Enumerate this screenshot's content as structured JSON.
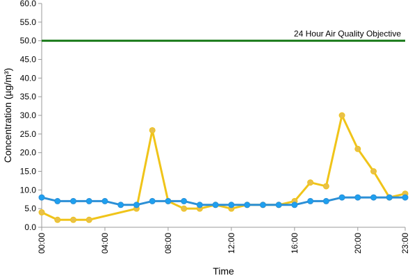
{
  "chart_data": {
    "type": "line",
    "title": "",
    "xlabel": "Time",
    "ylabel": "Concentration (µg/m³)",
    "ylim": [
      0,
      60
    ],
    "yticks": [
      "0.0",
      "5.0",
      "10.0",
      "15.0",
      "20.0",
      "25.0",
      "30.0",
      "35.0",
      "40.0",
      "45.0",
      "50.0",
      "55.0",
      "60.0"
    ],
    "xlim": [
      0,
      23
    ],
    "xticks": [
      {
        "hour": 0,
        "label": "00:00"
      },
      {
        "hour": 4,
        "label": "04:00"
      },
      {
        "hour": 8,
        "label": "08:00"
      },
      {
        "hour": 12,
        "label": "12:00"
      },
      {
        "hour": 16,
        "label": "16:00"
      },
      {
        "hour": 20,
        "label": "20:00"
      },
      {
        "hour": 23,
        "label": "23:00"
      }
    ],
    "grid": false,
    "legend": "none",
    "series": [
      {
        "color": "#f0c419",
        "marker_fill": "#e8c04a",
        "points": [
          {
            "x": 0,
            "y": 4
          },
          {
            "x": 1,
            "y": 2
          },
          {
            "x": 2,
            "y": 2
          },
          {
            "x": 3,
            "y": 2
          },
          {
            "x": 6,
            "y": 5
          },
          {
            "x": 7,
            "y": 26
          },
          {
            "x": 8,
            "y": 7
          },
          {
            "x": 9,
            "y": 5
          },
          {
            "x": 10,
            "y": 5
          },
          {
            "x": 11,
            "y": 6
          },
          {
            "x": 12,
            "y": 5
          },
          {
            "x": 13,
            "y": 6
          },
          {
            "x": 14,
            "y": 6
          },
          {
            "x": 15,
            "y": 6
          },
          {
            "x": 16,
            "y": 7
          },
          {
            "x": 17,
            "y": 12
          },
          {
            "x": 18,
            "y": 11
          },
          {
            "x": 19,
            "y": 30
          },
          {
            "x": 20,
            "y": 21
          },
          {
            "x": 21,
            "y": 15
          },
          {
            "x": 22,
            "y": 8
          },
          {
            "x": 23,
            "y": 9
          }
        ]
      },
      {
        "color": "#2b8fd6",
        "marker_fill": "#1ea0f0",
        "points": [
          {
            "x": 0,
            "y": 8
          },
          {
            "x": 1,
            "y": 7
          },
          {
            "x": 2,
            "y": 7
          },
          {
            "x": 3,
            "y": 7
          },
          {
            "x": 4,
            "y": 7
          },
          {
            "x": 5,
            "y": 6
          },
          {
            "x": 6,
            "y": 6
          },
          {
            "x": 7,
            "y": 7
          },
          {
            "x": 8,
            "y": 7
          },
          {
            "x": 9,
            "y": 7
          },
          {
            "x": 10,
            "y": 6
          },
          {
            "x": 11,
            "y": 6
          },
          {
            "x": 12,
            "y": 6
          },
          {
            "x": 13,
            "y": 6
          },
          {
            "x": 14,
            "y": 6
          },
          {
            "x": 15,
            "y": 6
          },
          {
            "x": 16,
            "y": 6
          },
          {
            "x": 17,
            "y": 7
          },
          {
            "x": 18,
            "y": 7
          },
          {
            "x": 19,
            "y": 8
          },
          {
            "x": 20,
            "y": 8
          },
          {
            "x": 21,
            "y": 8
          },
          {
            "x": 22,
            "y": 8
          },
          {
            "x": 23,
            "y": 8
          }
        ]
      }
    ],
    "reference_line": {
      "y": 50,
      "label": "24 Hour Air Quality Objective",
      "color": "#1a7a1a"
    }
  }
}
